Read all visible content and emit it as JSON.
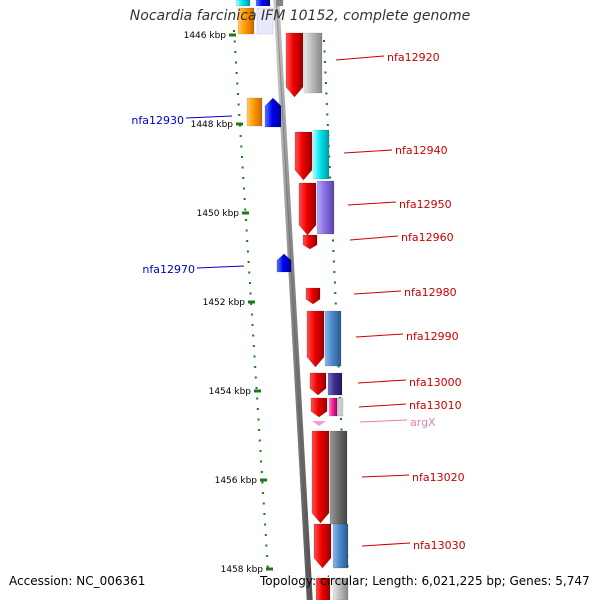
{
  "title": "Nocardia farcinica IFM 10152, complete genome",
  "footer": {
    "accession": "Accession: NC_006361",
    "topology": "Topology: circular; Length: 6,021,225 bp; Genes: 5,747"
  },
  "ruler": {
    "ticks": [
      {
        "label": "1446 kbp"
      },
      {
        "label": "1448 kbp"
      },
      {
        "label": "1450 kbp"
      },
      {
        "label": "1452 kbp"
      },
      {
        "label": "1454 kbp"
      },
      {
        "label": "1456 kbp"
      },
      {
        "label": "1458 kbp"
      }
    ]
  },
  "colors": {
    "gene_label": "#cc0000",
    "gene_label_left": "#0000cc",
    "rna_label": "#e080b0",
    "backbone": "#777777",
    "tick": "#1a7a1a"
  },
  "gene_labels": [
    {
      "text": "nfa12920",
      "side": "right",
      "kind": "gene"
    },
    {
      "text": "nfa12930",
      "side": "left",
      "kind": "gene"
    },
    {
      "text": "nfa12940",
      "side": "right",
      "kind": "gene"
    },
    {
      "text": "nfa12950",
      "side": "right",
      "kind": "gene"
    },
    {
      "text": "nfa12960",
      "side": "right",
      "kind": "gene"
    },
    {
      "text": "nfa12970",
      "side": "left",
      "kind": "gene"
    },
    {
      "text": "nfa12980",
      "side": "right",
      "kind": "gene"
    },
    {
      "text": "nfa12990",
      "side": "right",
      "kind": "gene"
    },
    {
      "text": "nfa13000",
      "side": "right",
      "kind": "gene"
    },
    {
      "text": "nfa13010",
      "side": "right",
      "kind": "gene"
    },
    {
      "text": "argX",
      "side": "right",
      "kind": "rna"
    },
    {
      "text": "nfa13020",
      "side": "right",
      "kind": "gene"
    },
    {
      "text": "nfa13030",
      "side": "right",
      "kind": "gene"
    }
  ]
}
